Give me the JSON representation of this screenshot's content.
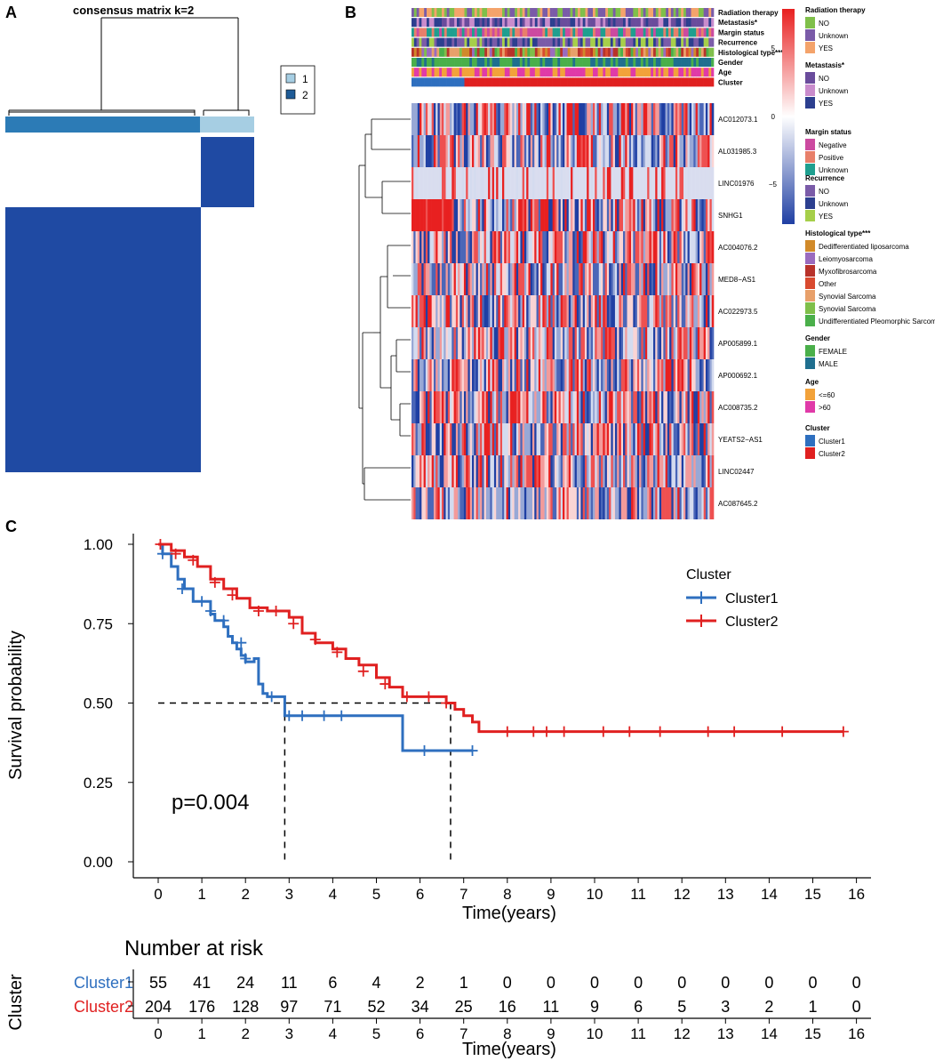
{
  "panels": {
    "A": "A",
    "B": "B",
    "C": "C"
  },
  "panel_a": {
    "title": "consensus matrix k=2",
    "legend": [
      {
        "label": "1",
        "color": "#a6cee3"
      },
      {
        "label": "2",
        "color": "#1f5b96"
      }
    ]
  },
  "panel_b": {
    "annotation_tracks": [
      "Radiation therapy",
      "Metastasis*",
      "Margin status",
      "Recurrence",
      "Histological type***",
      "Gender",
      "Age",
      "Cluster"
    ],
    "genes": [
      "AC012073.1",
      "AL031985.3",
      "LINC01976",
      "SNHG1",
      "AC004076.2",
      "MED8−AS1",
      "AC022973.5",
      "AP005899.1",
      "AP000692.1",
      "AC008735.2",
      "YEATS2−AS1",
      "LINC02447",
      "AC087645.2"
    ],
    "colorbar_ticks": [
      "5",
      "0",
      "−5"
    ],
    "legends": [
      {
        "title": "Radiation therapy",
        "items": [
          {
            "label": "NO",
            "color": "#7fbf4a"
          },
          {
            "label": "Unknown",
            "color": "#7a5ba8"
          },
          {
            "label": "YES",
            "color": "#f4a36b"
          }
        ]
      },
      {
        "title": "Metastasis*",
        "items": [
          {
            "label": "NO",
            "color": "#6a4c9c"
          },
          {
            "label": "Unknown",
            "color": "#c98ccc"
          },
          {
            "label": "YES",
            "color": "#2c3f8f"
          }
        ]
      },
      {
        "title": "Margin status",
        "items": [
          {
            "label": "Negative",
            "color": "#cc4aa0"
          },
          {
            "label": "Positive",
            "color": "#e87f6a"
          },
          {
            "label": "Unknown",
            "color": "#1f9f8f"
          }
        ]
      },
      {
        "title": "Recurrence",
        "items": [
          {
            "label": "NO",
            "color": "#7a5ba8"
          },
          {
            "label": "Unknown",
            "color": "#2c3f8f"
          },
          {
            "label": "YES",
            "color": "#a6cf4a"
          }
        ]
      },
      {
        "title": "Histological type***",
        "items": [
          {
            "label": "Dedifferentiated liposarcoma",
            "color": "#d18a2a"
          },
          {
            "label": "Leiomyosarcoma",
            "color": "#9a6bbf"
          },
          {
            "label": "Myxofibrosarcoma",
            "color": "#b8322a"
          },
          {
            "label": "Other",
            "color": "#d94a2f"
          },
          {
            "label": "Synovial Sarcoma",
            "color": "#e8a06a"
          },
          {
            "label": "Synovial Sarcoma",
            "color": "#7fbf4a"
          },
          {
            "label": "Undifferentiated Pleomorphic Sarcoma",
            "color": "#4aaf4a"
          }
        ]
      },
      {
        "title": "Gender",
        "items": [
          {
            "label": "FEMALE",
            "color": "#4aaf4a"
          },
          {
            "label": "MALE",
            "color": "#1f6f8f"
          }
        ]
      },
      {
        "title": "Age",
        "items": [
          {
            "label": "<=60",
            "color": "#f2a23a"
          },
          {
            "label": ">60",
            "color": "#e03aa8"
          }
        ]
      },
      {
        "title": "Cluster",
        "items": [
          {
            "label": "Cluster1",
            "color": "#2e6fbf"
          },
          {
            "label": "Cluster2",
            "color": "#e02020"
          }
        ]
      }
    ]
  },
  "chart_data": {
    "type": "line",
    "subtype": "kaplan-meier",
    "xlabel": "Time(years)",
    "ylabel": "Survival probability",
    "xlim": [
      0,
      16
    ],
    "ylim": [
      0,
      1
    ],
    "xticks": [
      0,
      1,
      2,
      3,
      4,
      5,
      6,
      7,
      8,
      9,
      10,
      11,
      12,
      13,
      14,
      15,
      16
    ],
    "yticks": [
      "0.00",
      "0.25",
      "0.50",
      "0.75",
      "1.00"
    ],
    "pvalue": "p=0.004",
    "legend_title": "Cluster",
    "median_line_y": 0.5,
    "medians": [
      2.9,
      6.7
    ],
    "series": [
      {
        "name": "Cluster1",
        "color": "#2e6fbf",
        "x": [
          0,
          0.1,
          0.3,
          0.45,
          0.6,
          0.8,
          1.2,
          1.3,
          1.5,
          1.6,
          1.7,
          1.8,
          1.9,
          2.0,
          2.2,
          2.3,
          2.4,
          2.5,
          2.6,
          2.9,
          3.4,
          4.0,
          4.6,
          5.6,
          6.0,
          7.2
        ],
        "y": [
          1.0,
          0.97,
          0.93,
          0.89,
          0.86,
          0.82,
          0.78,
          0.76,
          0.74,
          0.71,
          0.69,
          0.67,
          0.65,
          0.63,
          0.64,
          0.56,
          0.53,
          0.52,
          0.52,
          0.46,
          0.46,
          0.46,
          0.46,
          0.35,
          0.35,
          0.35
        ],
        "censor": [
          [
            0.1,
            0.97
          ],
          [
            0.55,
            0.86
          ],
          [
            1.0,
            0.82
          ],
          [
            1.2,
            0.79
          ],
          [
            1.5,
            0.76
          ],
          [
            1.9,
            0.69
          ],
          [
            2.0,
            0.64
          ],
          [
            2.6,
            0.52
          ],
          [
            3.0,
            0.46
          ],
          [
            3.3,
            0.46
          ],
          [
            3.8,
            0.46
          ],
          [
            4.2,
            0.46
          ],
          [
            6.1,
            0.35
          ],
          [
            7.2,
            0.35
          ]
        ]
      },
      {
        "name": "Cluster2",
        "color": "#e02020",
        "x": [
          0,
          0.3,
          0.6,
          0.9,
          1.2,
          1.5,
          1.8,
          2.1,
          2.5,
          3.0,
          3.3,
          3.6,
          4.0,
          4.3,
          4.6,
          5.0,
          5.3,
          5.6,
          6.0,
          6.6,
          6.8,
          7.0,
          7.2,
          7.35,
          8.0,
          10.0,
          12.0,
          14.0,
          15.7
        ],
        "y": [
          1.0,
          0.98,
          0.96,
          0.93,
          0.89,
          0.86,
          0.83,
          0.8,
          0.79,
          0.77,
          0.72,
          0.69,
          0.67,
          0.64,
          0.62,
          0.58,
          0.55,
          0.52,
          0.52,
          0.5,
          0.48,
          0.46,
          0.44,
          0.41,
          0.41,
          0.41,
          0.41,
          0.41,
          0.41
        ],
        "censor": [
          [
            0.05,
            1.0
          ],
          [
            0.4,
            0.97
          ],
          [
            0.8,
            0.95
          ],
          [
            1.3,
            0.88
          ],
          [
            1.7,
            0.84
          ],
          [
            2.3,
            0.79
          ],
          [
            2.7,
            0.79
          ],
          [
            3.1,
            0.75
          ],
          [
            3.6,
            0.7
          ],
          [
            4.1,
            0.66
          ],
          [
            4.7,
            0.6
          ],
          [
            5.2,
            0.56
          ],
          [
            5.7,
            0.52
          ],
          [
            6.2,
            0.52
          ],
          [
            6.6,
            0.5
          ],
          [
            8.0,
            0.41
          ],
          [
            8.6,
            0.41
          ],
          [
            8.9,
            0.41
          ],
          [
            9.3,
            0.41
          ],
          [
            10.2,
            0.41
          ],
          [
            10.8,
            0.41
          ],
          [
            11.5,
            0.41
          ],
          [
            12.6,
            0.41
          ],
          [
            13.2,
            0.41
          ],
          [
            14.3,
            0.41
          ],
          [
            15.7,
            0.41
          ]
        ]
      }
    ]
  },
  "risk_table": {
    "title": "Number at risk",
    "ylabel": "Cluster",
    "xlabel": "Time(years)",
    "times": [
      0,
      1,
      2,
      3,
      4,
      5,
      6,
      7,
      8,
      9,
      10,
      11,
      12,
      13,
      14,
      15,
      16
    ],
    "rows": [
      {
        "name": "Cluster1",
        "color": "#2e6fbf",
        "values": [
          55,
          41,
          24,
          11,
          6,
          4,
          2,
          1,
          0,
          0,
          0,
          0,
          0,
          0,
          0,
          0,
          0
        ]
      },
      {
        "name": "Cluster2",
        "color": "#e02020",
        "values": [
          204,
          176,
          128,
          97,
          71,
          52,
          34,
          25,
          16,
          11,
          9,
          6,
          5,
          3,
          2,
          1,
          0
        ]
      }
    ]
  }
}
